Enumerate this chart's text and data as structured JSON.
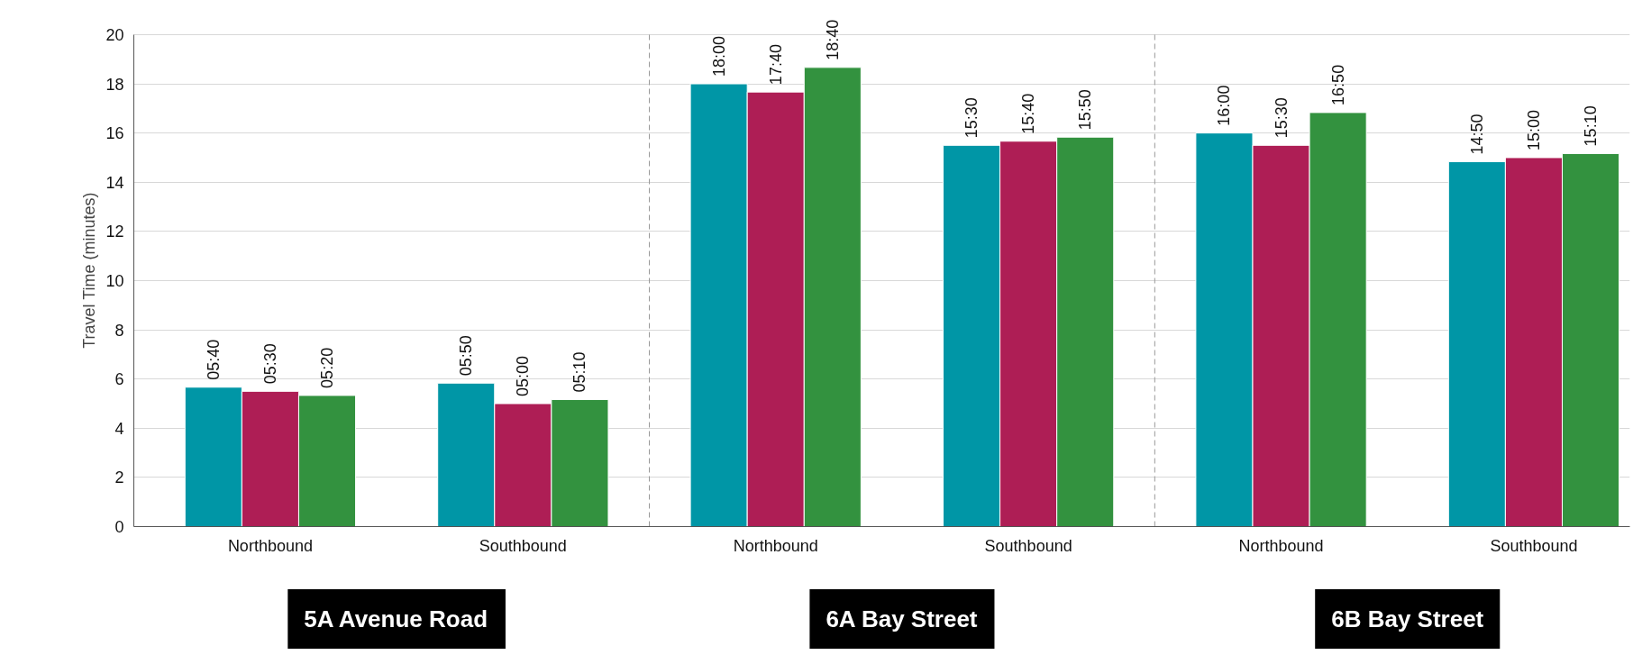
{
  "chart_data": {
    "type": "bar",
    "ylabel": "Travel Time (minutes)",
    "categories": [
      "Northbound",
      "Southbound",
      "Northbound",
      "Southbound",
      "Northbound",
      "Southbound"
    ],
    "series": [
      {
        "color": "#0096a6",
        "values": [
          5.667,
          5.833,
          18,
          15.5,
          16,
          14.833
        ],
        "value_labels": [
          "05:40",
          "05:50",
          "18:00",
          "15:30",
          "16:00",
          "14:50"
        ]
      },
      {
        "color": "#ae1e55",
        "values": [
          5.5,
          5,
          17.667,
          15.667,
          15.5,
          15
        ],
        "value_labels": [
          "05:30",
          "05:00",
          "17:40",
          "15:40",
          "15:30",
          "15:00"
        ]
      },
      {
        "color": "#33923f",
        "values": [
          5.333,
          5.167,
          18.667,
          15.833,
          16.833,
          15.167
        ],
        "value_labels": [
          "05:20",
          "05:10",
          "18:40",
          "15:50",
          "16:50",
          "15:10"
        ]
      }
    ],
    "annotations": [
      "5A Avenue Road",
      "6A Bay Street",
      "6B Bay Street"
    ],
    "ylim": [
      0,
      20
    ],
    "yticks": [
      0,
      2,
      4,
      6,
      8,
      10,
      12,
      14,
      16,
      18,
      20
    ],
    "grid": "y"
  }
}
